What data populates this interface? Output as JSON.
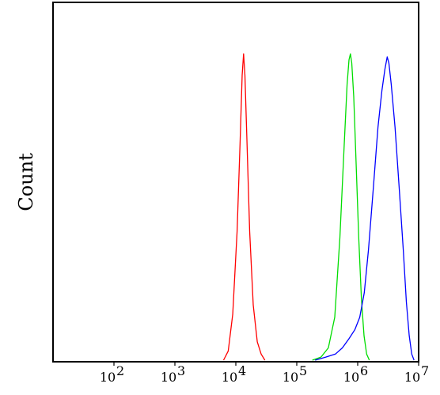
{
  "chart_data": {
    "type": "line",
    "title": "",
    "xlabel": "",
    "ylabel": "Count",
    "x_scale": "log",
    "xlim": [
      10,
      10000000
    ],
    "ylim": [
      0,
      1
    ],
    "grid": false,
    "legend": "none",
    "x_ticks": [
      {
        "value": 100,
        "label": "10",
        "exp": "2"
      },
      {
        "value": 1000,
        "label": "10",
        "exp": "3"
      },
      {
        "value": 10000,
        "label": "10",
        "exp": "4"
      },
      {
        "value": 100000,
        "label": "10",
        "exp": "5"
      },
      {
        "value": 1000000,
        "label": "10",
        "exp": "6"
      },
      {
        "value": 10000000,
        "label": "10",
        "exp": "7"
      }
    ],
    "series": [
      {
        "color": "#ff0000",
        "points": [
          [
            6300,
            0
          ],
          [
            7500,
            0.03
          ],
          [
            8900,
            0.15
          ],
          [
            10500,
            0.42
          ],
          [
            11800,
            0.72
          ],
          [
            12700,
            0.93
          ],
          [
            13400,
            1.0
          ],
          [
            14100,
            0.93
          ],
          [
            15200,
            0.72
          ],
          [
            16900,
            0.42
          ],
          [
            19300,
            0.18
          ],
          [
            22500,
            0.06
          ],
          [
            26000,
            0.02
          ],
          [
            30000,
            0
          ]
        ]
      },
      {
        "color": "#00dd00",
        "points": [
          [
            180000,
            0
          ],
          [
            250000,
            0.01
          ],
          [
            330000,
            0.04
          ],
          [
            420000,
            0.14
          ],
          [
            510000,
            0.4
          ],
          [
            600000,
            0.7
          ],
          [
            670000,
            0.9
          ],
          [
            720000,
            0.98
          ],
          [
            760000,
            1.0
          ],
          [
            800000,
            0.97
          ],
          [
            860000,
            0.86
          ],
          [
            940000,
            0.65
          ],
          [
            1040000,
            0.4
          ],
          [
            1150000,
            0.2
          ],
          [
            1270000,
            0.08
          ],
          [
            1400000,
            0.02
          ],
          [
            1550000,
            0
          ]
        ]
      },
      {
        "color": "#0000ff",
        "points": [
          [
            200000,
            0
          ],
          [
            300000,
            0.01
          ],
          [
            430000,
            0.02
          ],
          [
            560000,
            0.04
          ],
          [
            720000,
            0.07
          ],
          [
            900000,
            0.1
          ],
          [
            1080000,
            0.14
          ],
          [
            1280000,
            0.22
          ],
          [
            1500000,
            0.36
          ],
          [
            1800000,
            0.56
          ],
          [
            2150000,
            0.76
          ],
          [
            2500000,
            0.88
          ],
          [
            2800000,
            0.95
          ],
          [
            3050000,
            0.99
          ],
          [
            3250000,
            0.97
          ],
          [
            3550000,
            0.9
          ],
          [
            4100000,
            0.76
          ],
          [
            4800000,
            0.56
          ],
          [
            5600000,
            0.36
          ],
          [
            6300000,
            0.19
          ],
          [
            7000000,
            0.08
          ],
          [
            7700000,
            0.02
          ],
          [
            8400000,
            0
          ]
        ]
      }
    ]
  }
}
